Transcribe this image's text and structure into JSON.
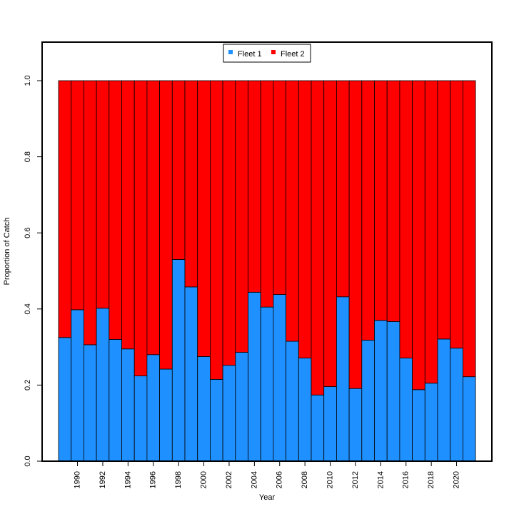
{
  "chart_data": {
    "type": "bar",
    "stacked": true,
    "title": "",
    "xlabel": "Year",
    "ylabel": "Proportion of Catch",
    "ylim": [
      0.0,
      1.1
    ],
    "yticks": [
      "0.0",
      "0.2",
      "0.4",
      "0.6",
      "0.8",
      "1.0"
    ],
    "xtick_labels": [
      "1990",
      "1992",
      "1994",
      "1996",
      "1998",
      "2000",
      "2002",
      "2004",
      "2006",
      "2008",
      "2010",
      "2012",
      "2014",
      "2016",
      "2018",
      "2020"
    ],
    "categories": [
      1989,
      1990,
      1991,
      1992,
      1993,
      1994,
      1995,
      1996,
      1997,
      1998,
      1999,
      2000,
      2001,
      2002,
      2003,
      2004,
      2005,
      2006,
      2007,
      2008,
      2009,
      2010,
      2011,
      2012,
      2013,
      2014,
      2015,
      2016,
      2017,
      2018,
      2019,
      2020,
      2021
    ],
    "legend_position": "top-center",
    "grid": false,
    "series": [
      {
        "name": "Fleet 1",
        "color": "#1E90FF",
        "values": [
          0.325,
          0.398,
          0.306,
          0.402,
          0.32,
          0.295,
          0.224,
          0.28,
          0.242,
          0.53,
          0.458,
          0.275,
          0.215,
          0.252,
          0.286,
          0.444,
          0.405,
          0.438,
          0.315,
          0.271,
          0.174,
          0.196,
          0.432,
          0.191,
          0.318,
          0.37,
          0.367,
          0.271,
          0.188,
          0.205,
          0.321,
          0.297,
          0.222
        ]
      },
      {
        "name": "Fleet 2",
        "color": "#FF0000",
        "values": [
          0.675,
          0.602,
          0.694,
          0.598,
          0.68,
          0.705,
          0.776,
          0.72,
          0.758,
          0.47,
          0.542,
          0.725,
          0.785,
          0.748,
          0.714,
          0.556,
          0.595,
          0.562,
          0.685,
          0.729,
          0.826,
          0.804,
          0.568,
          0.809,
          0.682,
          0.63,
          0.633,
          0.729,
          0.812,
          0.795,
          0.679,
          0.703,
          0.778
        ]
      }
    ]
  }
}
